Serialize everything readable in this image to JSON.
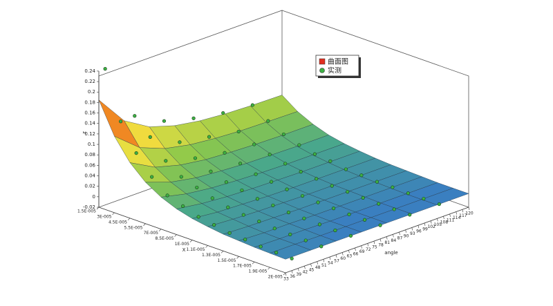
{
  "chart_data": {
    "type": "surface3d",
    "zlabel": "z",
    "xlabel": "X",
    "ylabel": "angle",
    "zlim": [
      -0.02,
      0.24
    ],
    "zticks": [
      -0.02,
      0,
      0.02,
      0.04,
      0.06,
      0.08,
      0.1,
      0.12,
      0.14,
      0.16,
      0.18,
      0.2,
      0.22,
      0.24
    ],
    "categories": [
      "1.5E-005",
      "3E-005",
      "4.5E-005",
      "5.5E-005",
      "7E-005",
      "8.5E-005",
      "1E-005",
      "1.1E-005",
      "1.3E-005",
      "1.5E-005",
      "1.7E-005",
      "1.9E-005",
      "2E-005"
    ],
    "ylim": [
      33,
      120
    ],
    "yticks": [
      33,
      36,
      39,
      42,
      45,
      48,
      51,
      54,
      57,
      60,
      63,
      66,
      69,
      72,
      75,
      78,
      81,
      84,
      87,
      90,
      93,
      96,
      99,
      102,
      105,
      108,
      111,
      114,
      117,
      120
    ],
    "series": [
      {
        "name": "曲面图",
        "color": "#e03020",
        "angles": [
          33,
          45,
          57,
          69,
          81,
          93,
          105,
          120
        ],
        "values": [
          [
            0.185,
            0.128,
            0.099,
            0.084,
            0.076,
            0.072,
            0.07,
            0.069
          ],
          [
            0.126,
            0.087,
            0.068,
            0.058,
            0.053,
            0.05,
            0.049,
            0.048
          ],
          [
            0.086,
            0.06,
            0.047,
            0.04,
            0.037,
            0.035,
            0.034,
            0.034
          ],
          [
            0.059,
            0.042,
            0.033,
            0.029,
            0.026,
            0.025,
            0.024,
            0.024
          ],
          [
            0.041,
            0.03,
            0.024,
            0.021,
            0.019,
            0.018,
            0.018,
            0.018
          ],
          [
            0.029,
            0.022,
            0.018,
            0.016,
            0.015,
            0.014,
            0.014,
            0.014
          ],
          [
            0.021,
            0.016,
            0.014,
            0.012,
            0.011,
            0.011,
            0.011,
            0.011
          ],
          [
            0.016,
            0.013,
            0.011,
            0.01,
            0.009,
            0.009,
            0.009,
            0.009
          ],
          [
            0.012,
            0.01,
            0.009,
            0.008,
            0.008,
            0.008,
            0.008,
            0.008
          ],
          [
            0.01,
            0.008,
            0.008,
            0.007,
            0.007,
            0.007,
            0.007,
            0.007
          ],
          [
            0.008,
            0.007,
            0.007,
            0.006,
            0.006,
            0.006,
            0.006,
            0.006
          ],
          [
            0.007,
            0.007,
            0.006,
            0.006,
            0.006,
            0.006,
            0.006,
            0.006
          ],
          [
            0.006,
            0.006,
            0.006,
            0.006,
            0.006,
            0.006,
            0.006,
            0.006
          ]
        ]
      },
      {
        "name": "实测",
        "color": "#3cb043",
        "angles": [
          36,
          50,
          64,
          78,
          92,
          106
        ],
        "values": [
          [
            0.24,
            0.13,
            0.1,
            0.085,
            0.075,
            0.07
          ],
          [
            0.15,
            0.1,
            0.07,
            0.06,
            0.05,
            0.05
          ],
          [
            0.1,
            0.065,
            0.05,
            0.04,
            0.036,
            0.035
          ],
          [
            0.065,
            0.045,
            0.035,
            0.03,
            0.027,
            0.025
          ],
          [
            0.04,
            0.035,
            0.025,
            0.02,
            0.02,
            0.018
          ],
          [
            0.03,
            0.025,
            0.02,
            0.016,
            0.015,
            0.015
          ],
          [
            0.02,
            0.018,
            0.014,
            0.012,
            0.012,
            0.01
          ],
          [
            0.015,
            0.014,
            0.012,
            0.01,
            0.009,
            0.009
          ],
          [
            0.01,
            0.012,
            0.009,
            0.008,
            0.008,
            0.007
          ],
          [
            0.008,
            0.009,
            0.008,
            0.007,
            0.007,
            0.007
          ],
          [
            0.005,
            0.008,
            0.007,
            0.006,
            0.006,
            0.006
          ],
          [
            0.004,
            0.007,
            0.006,
            0.006,
            0.006,
            0.006
          ],
          [
            0.003,
            0.006,
            0.006,
            0.006,
            0.006,
            0.006
          ]
        ]
      }
    ]
  }
}
